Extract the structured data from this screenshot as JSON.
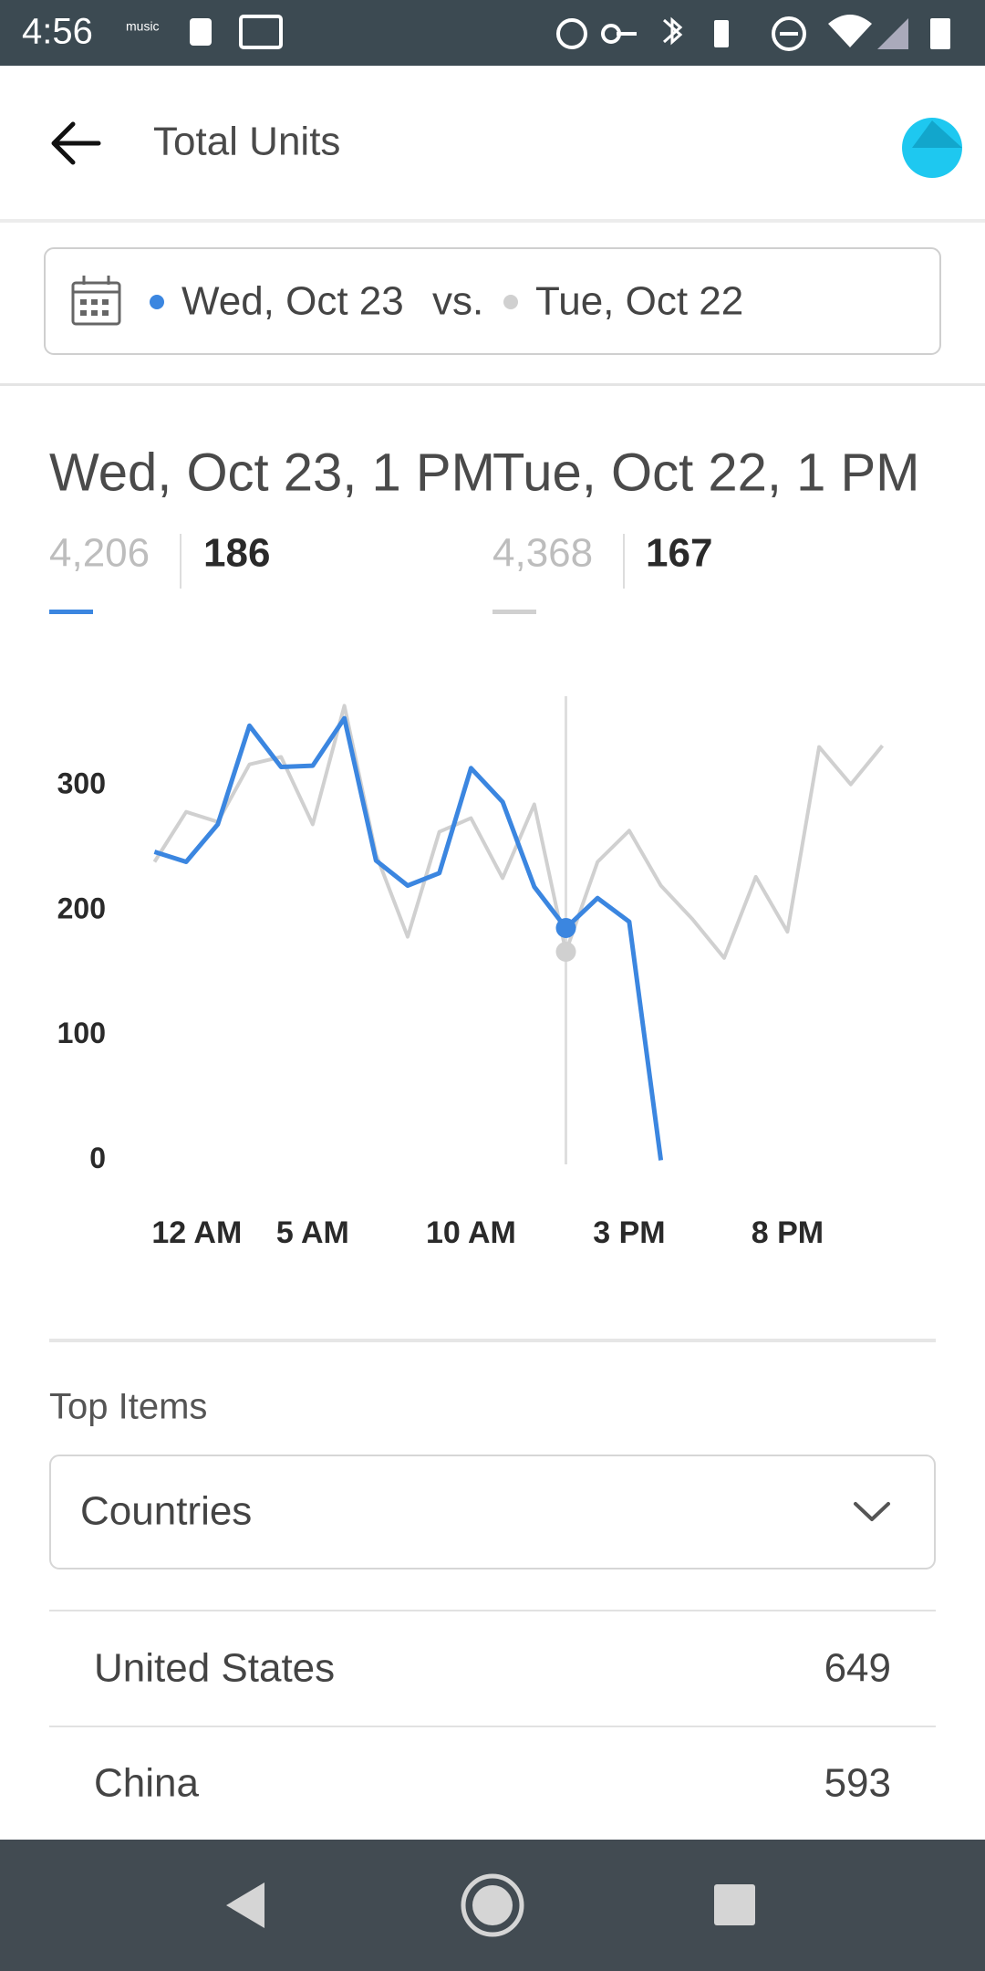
{
  "status_bar": {
    "time": "4:56",
    "label": "music"
  },
  "header": {
    "title": "Total Units"
  },
  "date_selector": {
    "current": "Wed, Oct 23",
    "separator": "vs.",
    "previous": "Tue, Oct 22"
  },
  "summary": [
    {
      "label": "Wed, Oct 23, 1 PM",
      "total": "4,206",
      "value": "186"
    },
    {
      "label": "Tue, Oct 22, 1 PM",
      "total": "4,368",
      "value": "167"
    }
  ],
  "chart_data": {
    "type": "line",
    "categories": [
      "12 AM",
      null,
      null,
      null,
      null,
      "5 AM",
      null,
      null,
      null,
      null,
      "10 AM",
      null,
      null,
      null,
      null,
      "3 PM",
      null,
      null,
      null,
      null,
      "8 PM",
      null,
      null,
      null
    ],
    "series": [
      {
        "name": "Wed, Oct 23",
        "color": "#3b86e0",
        "values": [
          247,
          239,
          269,
          348,
          315,
          316,
          354,
          240,
          220,
          230,
          314,
          287,
          219,
          186,
          210,
          191,
          0,
          null,
          null,
          null,
          null,
          null,
          null,
          null
        ]
      },
      {
        "name": "Tue, Oct 22",
        "color": "#d0d0d0",
        "values": [
          239,
          279,
          271,
          317,
          323,
          269,
          364,
          245,
          179,
          263,
          274,
          226,
          285,
          167,
          239,
          264,
          220,
          193,
          162,
          227,
          183,
          331,
          301,
          332
        ]
      }
    ],
    "ylim": [
      0,
      300
    ],
    "yticks": [
      0,
      100,
      200,
      300
    ],
    "highlight_index": 13,
    "grid": false
  },
  "top_items": {
    "title": "Top Items",
    "dropdown": "Countries",
    "rows": [
      [
        "United States",
        "649"
      ],
      [
        "China",
        "593"
      ]
    ]
  }
}
